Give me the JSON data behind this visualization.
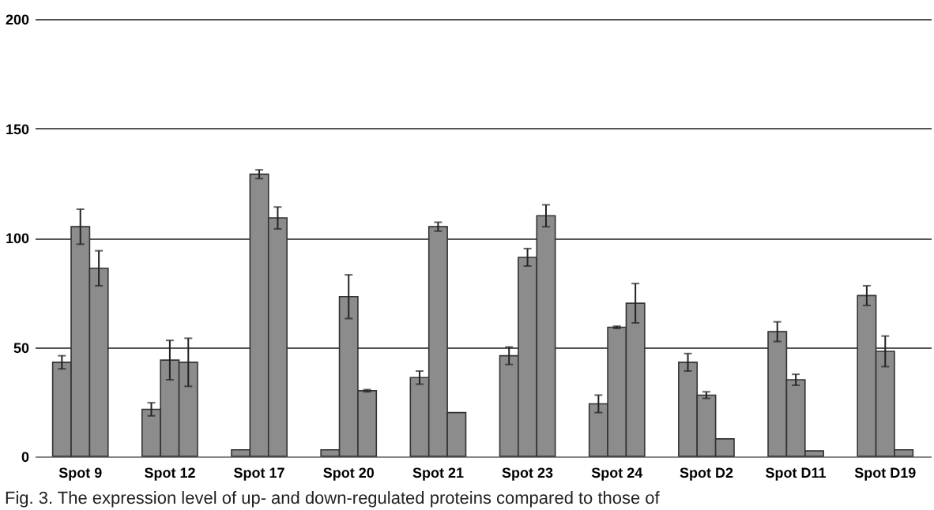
{
  "chart_data": {
    "type": "bar",
    "categories": [
      "Spot 9",
      "Spot 12",
      "Spot 17",
      "Spot 20",
      "Spot  21",
      "Spot  23",
      "Spot 24",
      "Spot D2",
      "Spot D11",
      "Spot  D19"
    ],
    "series": [
      {
        "color": "#8c8c8c",
        "values": [
          43,
          21.5,
          3,
          3,
          36,
          46,
          24,
          43,
          57,
          73.5
        ],
        "errors": [
          3,
          3,
          null,
          null,
          3,
          4,
          4,
          4,
          4.5,
          4.5
        ]
      },
      {
        "color": "#8c8c8c",
        "values": [
          105,
          44,
          129,
          73,
          105,
          91,
          59,
          28,
          35,
          48
        ],
        "errors": [
          8,
          9,
          2,
          10,
          2,
          4,
          0.5,
          1.5,
          2.5,
          7
        ]
      },
      {
        "color": "#8c8c8c",
        "values": [
          86,
          43,
          109,
          30,
          20,
          110,
          70,
          8,
          2.5,
          3
        ],
        "errors": [
          8,
          11,
          5,
          0.5,
          null,
          5,
          9,
          null,
          null,
          null
        ]
      }
    ],
    "ylim": [
      0,
      200
    ],
    "yticks": [
      0,
      50,
      100,
      150,
      200
    ],
    "grid": "y",
    "annotations": [
      "Fig. 3. The expression level of up- and down-regulated proteins compared to those of"
    ]
  }
}
